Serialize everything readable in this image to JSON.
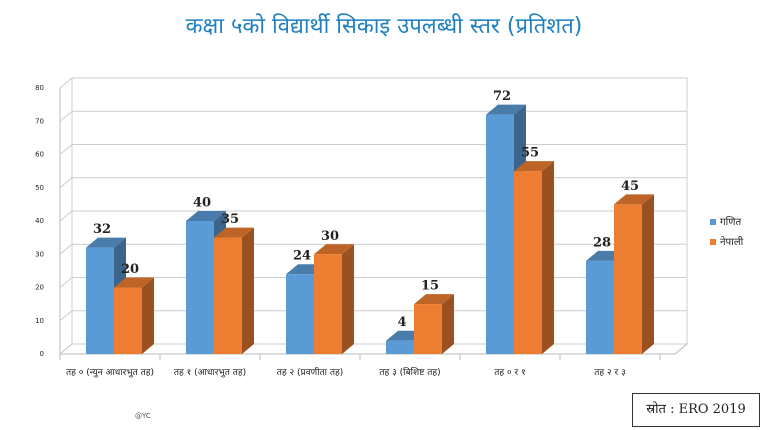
{
  "chart_data": {
    "type": "bar",
    "title": "कक्षा ५को विद्यार्थी सिकाइ उपलब्धी स्तर (प्रतिशत)",
    "categories": [
      "तह ० (न्युन आधारभुत तह)",
      "तह १ (आधारभुत तह)",
      "तह २ (प्रवणीता तह)",
      "तह ३ (बिशिष्ट तह)",
      "तह ० र १",
      "तह २ र ३"
    ],
    "series": [
      {
        "name": "गणित",
        "color": "#5b9bd5",
        "values": [
          32,
          40,
          24,
          4,
          72,
          28
        ]
      },
      {
        "name": "नेपाली",
        "color": "#ed7d31",
        "values": [
          20,
          35,
          30,
          15,
          55,
          45
        ]
      }
    ],
    "ylim": [
      0,
      80
    ],
    "yticks": [
      0,
      10,
      20,
      30,
      40,
      50,
      60,
      70,
      80
    ],
    "grid": true,
    "legend": "right",
    "source": "स्रोत : ERO 2019",
    "credit": "@YC"
  }
}
